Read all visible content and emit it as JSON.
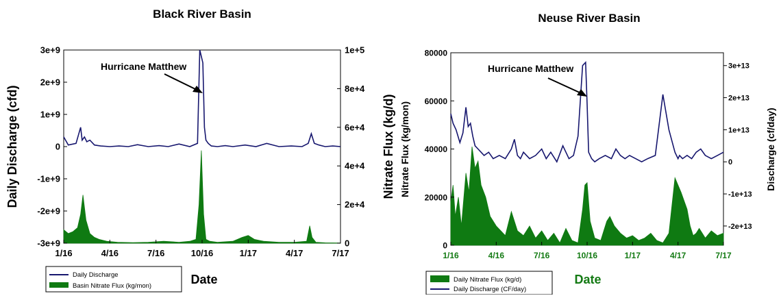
{
  "colors": {
    "discharge": "#16166e",
    "nitrate": "#0f7a12",
    "axis": "#000000",
    "neuse_tick_date": "#137a13"
  },
  "chart_data": [
    {
      "type": "line",
      "title": "Black River Basin",
      "xlabel": "Date",
      "ylabel": "Daily Discharge (cfd)",
      "y2label": "Nitrate Flux (kg/d)",
      "x_ticks": [
        "1/16",
        "4/16",
        "7/16",
        "10/16",
        "1/17",
        "4/17",
        "7/17"
      ],
      "x_range": [
        0,
        18
      ],
      "ylim": [
        -3000000000,
        3000000000
      ],
      "y_ticks": [
        "3e+9",
        "2e+9",
        "1e+9",
        "0",
        "-1e+9",
        "-2e+9",
        "-3e+9"
      ],
      "y2lim": [
        0,
        100000
      ],
      "y2_ticks": [
        "1e+5",
        "8e+4",
        "6e+4",
        "4e+4",
        "2e+4",
        "0"
      ],
      "annotation": "Hurricane Matthew",
      "legend_position": "bottom-left",
      "series": [
        {
          "name": "Daily Discharge",
          "axis": "left",
          "kind": "line",
          "x": [
            0,
            0.3,
            0.8,
            1.1,
            1.2,
            1.35,
            1.5,
            1.7,
            2.0,
            2.4,
            3,
            3.6,
            4.2,
            4.8,
            5.5,
            6.2,
            6.8,
            7.5,
            8.2,
            8.7,
            8.85,
            8.95,
            9.05,
            9.15,
            9.25,
            9.4,
            9.6,
            10,
            10.5,
            11,
            11.8,
            12.5,
            13.2,
            14,
            14.8,
            15.5,
            15.9,
            16.1,
            16.3,
            16.6,
            17,
            17.5,
            18
          ],
          "y": [
            300000000,
            50000000,
            100000000,
            600000000,
            200000000,
            300000000,
            150000000,
            200000000,
            50000000,
            20000000,
            0,
            20000000,
            0,
            60000000,
            0,
            30000000,
            0,
            80000000,
            0,
            100000000,
            3000000000,
            2800000000,
            2600000000,
            600000000,
            200000000,
            100000000,
            20000000,
            0,
            30000000,
            0,
            50000000,
            0,
            100000000,
            0,
            20000000,
            0,
            100000000,
            400000000,
            100000000,
            50000000,
            0,
            20000000,
            0
          ]
        },
        {
          "name": "Basin Nitrate Flux (kg/mon)",
          "axis": "right",
          "kind": "area",
          "x": [
            0,
            0.3,
            0.6,
            0.9,
            1.1,
            1.25,
            1.45,
            1.7,
            2.0,
            2.3,
            2.8,
            3.5,
            4.5,
            5.5,
            6.5,
            7.5,
            8.2,
            8.6,
            8.8,
            8.95,
            9.1,
            9.25,
            9.5,
            10,
            11,
            11.6,
            12.0,
            12.4,
            13,
            14,
            15,
            15.8,
            16.0,
            16.15,
            16.4,
            17,
            18
          ],
          "y": [
            7000,
            5000,
            6000,
            8000,
            15000,
            25000,
            12000,
            5000,
            3000,
            2000,
            1000,
            500,
            300,
            500,
            1000,
            500,
            1000,
            2000,
            20000,
            48000,
            15000,
            2000,
            1000,
            500,
            1000,
            3000,
            4000,
            2000,
            1000,
            500,
            500,
            1000,
            9000,
            3000,
            500,
            200,
            100
          ]
        }
      ]
    },
    {
      "type": "line",
      "title": "Neuse River Basin",
      "xlabel": "Date",
      "ylabel": "Nitrate Flux (kg/mon)",
      "y2label": "Discharge (cf/day)",
      "x_ticks": [
        "1/16",
        "4/16",
        "7/16",
        "10/16",
        "1/17",
        "4/17",
        "7/17"
      ],
      "x_range": [
        0,
        18
      ],
      "ylim": [
        0,
        80000
      ],
      "y_ticks": [
        "80000",
        "60000",
        "40000",
        "20000",
        "0"
      ],
      "y2lim": [
        -26000000000000,
        34000000000000
      ],
      "y2_ticks": [
        "3e+13",
        "2e+13",
        "1e+13",
        "0",
        "-1e+13",
        "-2e+13"
      ],
      "annotation": "Hurricane Matthew",
      "legend_position": "bottom-left",
      "series": [
        {
          "name": "Daily Nitrate Flux (kg/d)",
          "axis": "left",
          "kind": "area",
          "x": [
            0,
            0.15,
            0.3,
            0.5,
            0.7,
            1.0,
            1.2,
            1.4,
            1.6,
            1.8,
            2.0,
            2.3,
            2.6,
            3.0,
            3.3,
            3.6,
            4.0,
            4.4,
            4.8,
            5.2,
            5.6,
            6.0,
            6.4,
            6.8,
            7.2,
            7.6,
            8.0,
            8.4,
            8.7,
            8.85,
            9.0,
            9.2,
            9.5,
            9.9,
            10.1,
            10.3,
            10.5,
            10.8,
            11.2,
            11.6,
            12.0,
            12.4,
            12.8,
            13.2,
            13.6,
            14.0,
            14.4,
            14.8,
            15.2,
            15.6,
            15.8,
            16.0,
            16.2,
            16.4,
            16.8,
            17.2,
            17.6,
            18.0
          ],
          "y": [
            18000,
            25000,
            12000,
            20000,
            8000,
            30000,
            22000,
            41000,
            32000,
            35000,
            25000,
            20000,
            12000,
            8000,
            6000,
            4000,
            14000,
            6000,
            4000,
            8000,
            3000,
            6000,
            2000,
            5000,
            1000,
            7000,
            2000,
            1000,
            15000,
            25000,
            26000,
            10000,
            3000,
            2000,
            6000,
            10000,
            12000,
            8000,
            5000,
            3000,
            4000,
            2000,
            3000,
            5000,
            2000,
            1000,
            5000,
            28000,
            22000,
            15000,
            8000,
            4000,
            5000,
            7000,
            3000,
            6000,
            4000,
            5000
          ]
        },
        {
          "name": "Daily Discharge (CF/day)",
          "axis": "right",
          "kind": "line",
          "x": [
            0,
            0.15,
            0.35,
            0.6,
            0.8,
            1.0,
            1.15,
            1.3,
            1.45,
            1.6,
            1.8,
            2.0,
            2.2,
            2.5,
            2.8,
            3.2,
            3.6,
            4.0,
            4.2,
            4.4,
            4.6,
            4.8,
            5.2,
            5.6,
            6.0,
            6.3,
            6.6,
            7.0,
            7.4,
            7.8,
            8.1,
            8.4,
            8.7,
            8.9,
            9.0,
            9.1,
            9.3,
            9.5,
            9.8,
            10.2,
            10.6,
            10.9,
            11.2,
            11.5,
            11.8,
            12.2,
            12.6,
            13.0,
            13.5,
            14.0,
            14.4,
            14.8,
            15.0,
            15.1,
            15.3,
            15.6,
            15.9,
            16.2,
            16.5,
            16.8,
            17.2,
            17.6,
            18.0
          ],
          "y": [
            15000000000000,
            12000000000000,
            10000000000000,
            6000000000000,
            9000000000000,
            17000000000000,
            11000000000000,
            12000000000000,
            8000000000000,
            5000000000000,
            4000000000000,
            3000000000000,
            2000000000000,
            3000000000000,
            1000000000000,
            2000000000000,
            1000000000000,
            4000000000000,
            7000000000000,
            2000000000000,
            1000000000000,
            3000000000000,
            1000000000000,
            2000000000000,
            4000000000000,
            1000000000000,
            3000000000000,
            0,
            5000000000000,
            1000000000000,
            2000000000000,
            8000000000000,
            30000000000000,
            31000000000000,
            18000000000000,
            3000000000000,
            1000000000000,
            0,
            1000000000000,
            2000000000000,
            1000000000000,
            4000000000000,
            2000000000000,
            1000000000000,
            2000000000000,
            1000000000000,
            0,
            1000000000000,
            2000000000000,
            21000000000000,
            10000000000000,
            3000000000000,
            1000000000000,
            2000000000000,
            1000000000000,
            2000000000000,
            1000000000000,
            3000000000000,
            4000000000000,
            2000000000000,
            1000000000000,
            2000000000000,
            3000000000000
          ]
        }
      ]
    }
  ]
}
